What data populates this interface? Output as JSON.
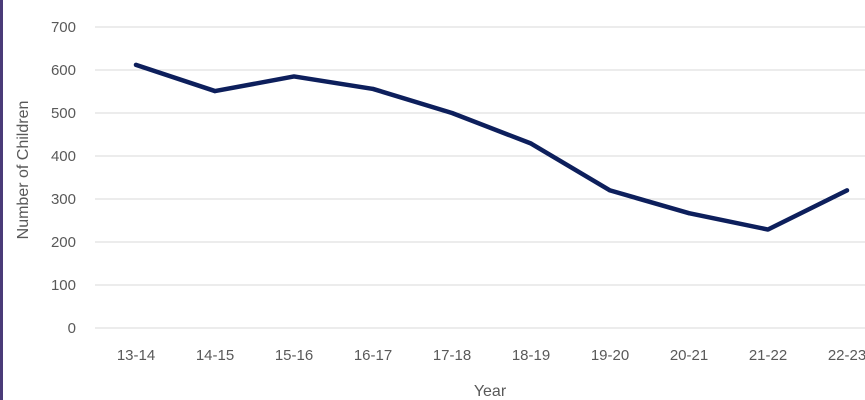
{
  "chart_data": {
    "type": "line",
    "title": "",
    "xlabel": "Year",
    "ylabel": "Number of Children",
    "categories": [
      "13-14",
      "14-15",
      "15-16",
      "16-17",
      "17-18",
      "18-19",
      "19-20",
      "20-21",
      "21-22",
      "22-23"
    ],
    "series": [
      {
        "values": [
          612,
          551,
          585,
          556,
          500,
          429,
          320,
          267,
          229,
          320
        ],
        "color": "#0d1f5c"
      }
    ],
    "ylim": [
      0,
      700
    ],
    "yticks": [
      0,
      100,
      200,
      300,
      400,
      500,
      600,
      700
    ],
    "grid": true,
    "legend": "none",
    "colors": {
      "gridline": "#d9d9d9",
      "text": "#595959",
      "frame": "#4a3b78"
    }
  }
}
